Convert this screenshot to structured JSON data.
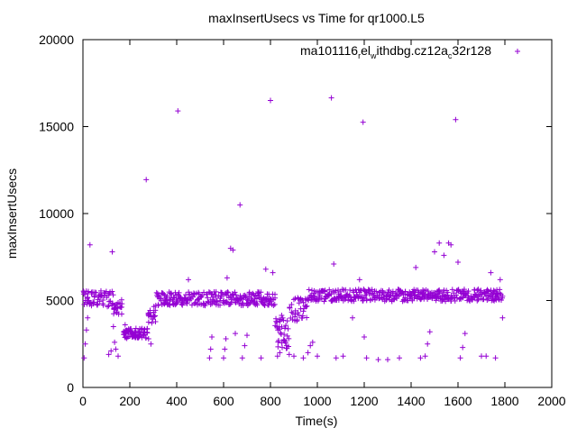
{
  "chart_data": {
    "type": "scatter",
    "title": "maxInsertUsecs vs Time for qr1000.L5",
    "xlabel": "Time(s)",
    "ylabel": "maxInsertUsecs",
    "xlim": [
      0,
      2000
    ],
    "ylim": [
      0,
      20000
    ],
    "x_ticks": [
      0,
      200,
      400,
      600,
      800,
      1000,
      1200,
      1400,
      1600,
      1800,
      2000
    ],
    "y_ticks": [
      0,
      5000,
      10000,
      15000,
      20000
    ],
    "x_tick_labels": [
      "0",
      "200",
      "400",
      "600",
      "800",
      "1000",
      "1200",
      "1400",
      "1600",
      "1800",
      "2000"
    ],
    "y_tick_labels": [
      "0",
      "5000",
      "10000",
      "15000",
      "20000"
    ],
    "grid": false,
    "marker": "+",
    "series": [
      {
        "name": "ma101116_rel_withdbg.cz12a_c32r128",
        "legend_parts": {
          "text_1": "ma101116",
          "sub_1": "r",
          "text_2": "el",
          "sub_2": "w",
          "text_3": "ithdbg.cz12a",
          "sub_3": "c",
          "text_4": "32r128"
        },
        "color": "#9400d3",
        "segments": [
          {
            "x_start": 0,
            "x_end": 130,
            "step": 5,
            "y_level": 5100,
            "y_jitter": 450
          },
          {
            "x_start": 130,
            "x_end": 170,
            "step": 5,
            "y_level": 4600,
            "y_jitter": 500
          },
          {
            "x_start": 170,
            "x_end": 275,
            "step": 4,
            "y_level": 3100,
            "y_jitter": 300
          },
          {
            "x_start": 275,
            "x_end": 310,
            "step": 5,
            "y_level": 4200,
            "y_jitter": 500
          },
          {
            "x_start": 310,
            "x_end": 820,
            "step": 5,
            "y_level": 5100,
            "y_jitter": 400
          },
          {
            "x_start": 820,
            "x_end": 880,
            "step": 4,
            "y_level": 3200,
            "y_jitter": 1000
          },
          {
            "x_start": 880,
            "x_end": 960,
            "step": 5,
            "y_level": 4500,
            "y_jitter": 700
          },
          {
            "x_start": 960,
            "x_end": 1790,
            "step": 5,
            "y_level": 5300,
            "y_jitter": 350
          }
        ],
        "points": [
          [
            5,
            1700
          ],
          [
            10,
            2500
          ],
          [
            15,
            3300
          ],
          [
            20,
            4000
          ],
          [
            30,
            8200
          ],
          [
            110,
            1900
          ],
          [
            120,
            2100
          ],
          [
            125,
            7800
          ],
          [
            130,
            3500
          ],
          [
            135,
            2600
          ],
          [
            140,
            2200
          ],
          [
            150,
            1800
          ],
          [
            180,
            3600
          ],
          [
            200,
            3300
          ],
          [
            240,
            3200
          ],
          [
            270,
            11950
          ],
          [
            280,
            2800
          ],
          [
            290,
            2500
          ],
          [
            300,
            4100
          ],
          [
            405,
            15900
          ],
          [
            450,
            6200
          ],
          [
            540,
            1700
          ],
          [
            545,
            2200
          ],
          [
            550,
            2900
          ],
          [
            600,
            1700
          ],
          [
            605,
            2200
          ],
          [
            610,
            2800
          ],
          [
            615,
            6300
          ],
          [
            630,
            8000
          ],
          [
            640,
            7900
          ],
          [
            650,
            3100
          ],
          [
            670,
            10500
          ],
          [
            680,
            1700
          ],
          [
            690,
            2400
          ],
          [
            700,
            3000
          ],
          [
            760,
            1700
          ],
          [
            780,
            6800
          ],
          [
            800,
            16500
          ],
          [
            810,
            6600
          ],
          [
            830,
            1800
          ],
          [
            840,
            2000
          ],
          [
            850,
            2300
          ],
          [
            860,
            2700
          ],
          [
            880,
            1900
          ],
          [
            900,
            1800
          ],
          [
            940,
            1700
          ],
          [
            960,
            2000
          ],
          [
            970,
            2400
          ],
          [
            980,
            2600
          ],
          [
            1000,
            1800
          ],
          [
            1060,
            16650
          ],
          [
            1070,
            7100
          ],
          [
            1080,
            1700
          ],
          [
            1110,
            1800
          ],
          [
            1150,
            4000
          ],
          [
            1180,
            6200
          ],
          [
            1195,
            15250
          ],
          [
            1200,
            2900
          ],
          [
            1210,
            1700
          ],
          [
            1260,
            1600
          ],
          [
            1300,
            1600
          ],
          [
            1350,
            1700
          ],
          [
            1420,
            6900
          ],
          [
            1440,
            1700
          ],
          [
            1460,
            1800
          ],
          [
            1470,
            2500
          ],
          [
            1480,
            3200
          ],
          [
            1500,
            7800
          ],
          [
            1520,
            8300
          ],
          [
            1540,
            7600
          ],
          [
            1560,
            8300
          ],
          [
            1570,
            8200
          ],
          [
            1590,
            15400
          ],
          [
            1600,
            7200
          ],
          [
            1610,
            1700
          ],
          [
            1620,
            2300
          ],
          [
            1630,
            3100
          ],
          [
            1700,
            1800
          ],
          [
            1720,
            1800
          ],
          [
            1740,
            6600
          ],
          [
            1760,
            1700
          ],
          [
            1780,
            6200
          ],
          [
            1790,
            4000
          ]
        ]
      }
    ],
    "legend_position": "top-right"
  }
}
